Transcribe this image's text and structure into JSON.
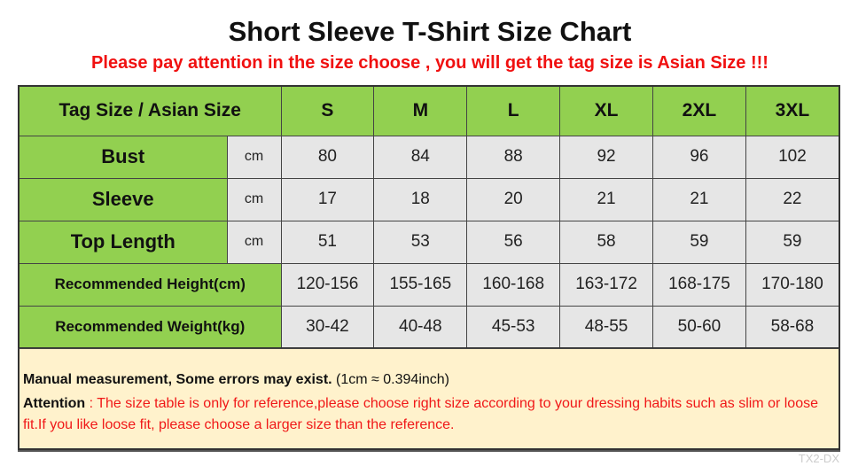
{
  "title": "Short Sleeve T-Shirt Size Chart",
  "subtitle": "Please pay attention in the size choose , you will get the tag size is Asian Size !!!",
  "table": {
    "header": "Tag Size / Asian Size",
    "sizes": [
      "S",
      "M",
      "L",
      "XL",
      "2XL",
      "3XL"
    ],
    "rows": [
      {
        "label": "Bust",
        "unit": "cm",
        "values": [
          "80",
          "84",
          "88",
          "92",
          "96",
          "102"
        ]
      },
      {
        "label": "Sleeve",
        "unit": "cm",
        "values": [
          "17",
          "18",
          "20",
          "21",
          "21",
          "22"
        ]
      },
      {
        "label": "Top Length",
        "unit": "cm",
        "values": [
          "51",
          "53",
          "56",
          "58",
          "59",
          "59"
        ]
      }
    ],
    "rec": [
      {
        "label": "Recommended Height(cm)",
        "values": [
          "120-156",
          "155-165",
          "160-168",
          "163-172",
          "168-175",
          "170-180"
        ]
      },
      {
        "label": "Recommended Weight(kg)",
        "values": [
          "30-42",
          "40-48",
          "45-53",
          "48-55",
          "50-60",
          "58-68"
        ]
      }
    ]
  },
  "note": {
    "bold": "Manual measurement, Some errors may exist.",
    "conv": "(1cm ≈ 0.394inch)",
    "attention_label": "Attention",
    "attention_text": " : The size table is only for reference,please choose right size according to your dressing habits such as slim or loose fit.If you like loose fit, please choose a larger size than the reference."
  },
  "watermark": "TX2-DX",
  "colors": {
    "header_green": "#92d050",
    "cell_gray": "#e6e6e6",
    "note_bg": "#fff2cc",
    "alert_red": "#f01010"
  }
}
